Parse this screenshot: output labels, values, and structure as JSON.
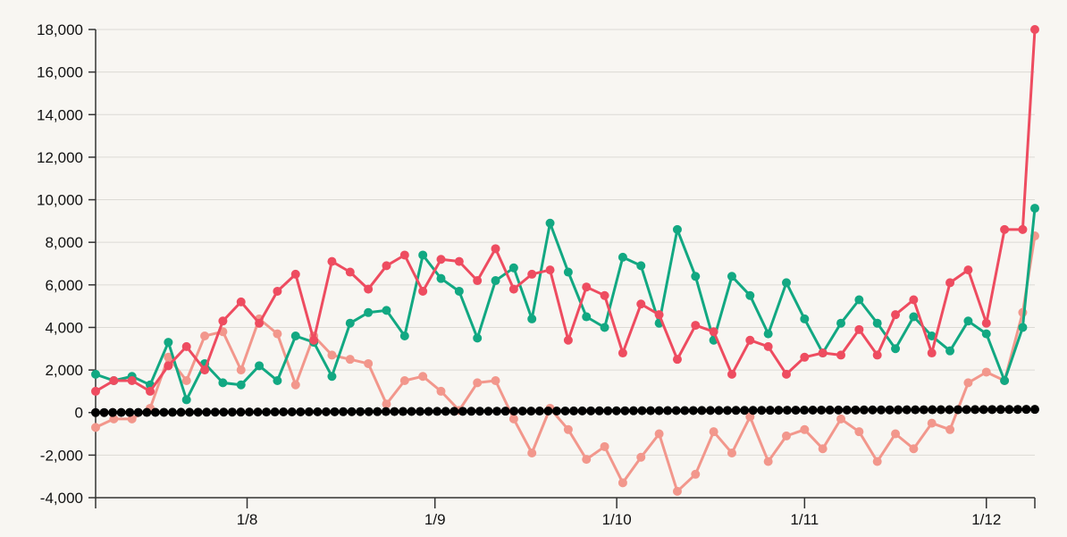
{
  "chart_data": {
    "type": "line",
    "title": "",
    "xlabel": "",
    "ylabel": "",
    "ylim": [
      -4000,
      18000
    ],
    "yticks": [
      -4000,
      -2000,
      0,
      2000,
      4000,
      6000,
      8000,
      10000,
      12000,
      14000,
      16000,
      18000
    ],
    "ytick_labels": [
      "-4,000",
      "-2,000",
      "0",
      "2,000",
      "4,000",
      "6,000",
      "8,000",
      "10,000",
      "12,000",
      "14,000",
      "16,000",
      "18,000"
    ],
    "xlim": [
      0,
      155
    ],
    "xticks": [
      25,
      56,
      86,
      117,
      147
    ],
    "xtick_labels": [
      "1/8",
      "1/9",
      "1/10",
      "1/11",
      "1/12"
    ],
    "grid": "horizontal",
    "legend": "none",
    "series": [
      {
        "color": "#ee4c60",
        "x": [
          0,
          3,
          6,
          9,
          12,
          15,
          18,
          21,
          24,
          27,
          30,
          33,
          36,
          39,
          42,
          45,
          48,
          51,
          54,
          57,
          60,
          63,
          66,
          69,
          72,
          75,
          78,
          81,
          84,
          87,
          90,
          93,
          96,
          99,
          102,
          105,
          108,
          111,
          114,
          117,
          120,
          123,
          126,
          129,
          132,
          135,
          138,
          141,
          144,
          147,
          150,
          153,
          155
        ],
        "values": [
          1000,
          1500,
          1500,
          1000,
          2200,
          3100,
          2000,
          4300,
          5200,
          4200,
          5700,
          6500,
          3400,
          7100,
          6600,
          5800,
          6900,
          7400,
          5700,
          7200,
          7100,
          6200,
          7700,
          5800,
          6500,
          6700,
          3400,
          5900,
          5500,
          2800,
          5100,
          4600,
          2500,
          4100,
          3800,
          1800,
          3400,
          3100,
          1800,
          2600,
          2800,
          2700,
          3900,
          2700,
          4600,
          5300,
          2800,
          6100,
          6700,
          4200,
          8600,
          8600,
          18000
        ]
      },
      {
        "color": "#12a882",
        "x": [
          0,
          3,
          6,
          9,
          12,
          15,
          18,
          21,
          24,
          27,
          30,
          33,
          36,
          39,
          42,
          45,
          48,
          51,
          54,
          57,
          60,
          63,
          66,
          69,
          72,
          75,
          78,
          81,
          84,
          87,
          90,
          93,
          96,
          99,
          102,
          105,
          108,
          111,
          114,
          117,
          120,
          123,
          126,
          129,
          132,
          135,
          138,
          141,
          144,
          147,
          150,
          153,
          155
        ],
        "values": [
          1800,
          1500,
          1700,
          1300,
          3300,
          600,
          2300,
          1400,
          1300,
          2200,
          1500,
          3600,
          3300,
          1700,
          4200,
          4700,
          4800,
          3600,
          7400,
          6300,
          5700,
          3500,
          6200,
          6800,
          4400,
          8900,
          6600,
          4500,
          4000,
          7300,
          6900,
          4200,
          8600,
          6400,
          3400,
          6400,
          5500,
          3700,
          6100,
          4400,
          2800,
          4200,
          5300,
          4200,
          3000,
          4500,
          3600,
          2900,
          4300,
          3700,
          1500,
          4000,
          9600
        ]
      },
      {
        "color": "#f2978c",
        "x": [
          0,
          3,
          6,
          9,
          12,
          15,
          18,
          21,
          24,
          27,
          30,
          33,
          36,
          39,
          42,
          45,
          48,
          51,
          54,
          57,
          60,
          63,
          66,
          69,
          72,
          75,
          78,
          81,
          84,
          87,
          90,
          93,
          96,
          99,
          102,
          105,
          108,
          111,
          114,
          117,
          120,
          123,
          126,
          129,
          132,
          135,
          138,
          141,
          144,
          147,
          150,
          153,
          155
        ],
        "values": [
          -700,
          -300,
          -300,
          200,
          2600,
          1500,
          3600,
          3800,
          2000,
          4400,
          3700,
          1300,
          3600,
          2700,
          2500,
          2300,
          400,
          1500,
          1700,
          1000,
          100,
          1400,
          1500,
          -300,
          -1900,
          200,
          -800,
          -2200,
          -1600,
          -3300,
          -2100,
          -1000,
          -3700,
          -2900,
          -900,
          -1900,
          -200,
          -2300,
          -1100,
          -800,
          -1700,
          -300,
          -900,
          -2300,
          -1000,
          -1700,
          -500,
          -800,
          1400,
          1900,
          1500,
          4700,
          8300
        ]
      }
    ],
    "baseline_series": {
      "color": "#000000",
      "x_start": 0,
      "x_end": 155,
      "y_start": 0,
      "y_end": 150
    }
  }
}
